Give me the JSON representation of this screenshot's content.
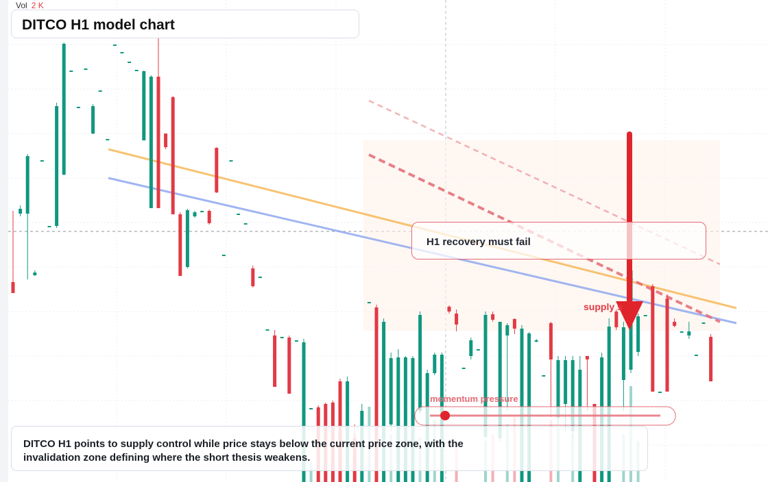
{
  "volume": {
    "label": "Vol",
    "value": "2 K"
  },
  "title": "DITCO H1 model chart",
  "callout": "H1 recovery must fail",
  "supply_label": "supply s",
  "meter": {
    "label": "momentum pressure",
    "level": 0.03
  },
  "caption": "DITCO H1 points to supply control while price stays below the current price zone, with the invalidation zone defining where the short thesis weakens.",
  "colors": {
    "up": "#10977f",
    "down": "#e23a45",
    "ma_fast": "#f6b85a",
    "ma_slow": "#8fa8ee",
    "channel": "#e46a74",
    "arrow": "#e0242c"
  },
  "chart_data": {
    "type": "candlestick",
    "y_range": [
      0,
      704
    ],
    "ohlc": [
      [
        412,
        428,
        308,
        428
      ],
      [
        312,
        305,
        300,
        316
      ],
      [
        312,
        228,
        225,
        408
      ],
      [
        402,
        398,
        395,
        403
      ],
      [
        234,
        234,
        234,
        234
      ],
      [
        330,
        330,
        330,
        330
      ],
      [
        330,
        155,
        150,
        333
      ],
      [
        255,
        64,
        62,
        256
      ],
      [
        103,
        103,
        103,
        103
      ],
      [
        156,
        156,
        156,
        156
      ],
      [
        100,
        100,
        100,
        100
      ],
      [
        195,
        155,
        152,
        196
      ],
      [
        132,
        132,
        132,
        132
      ],
      [
        203,
        203,
        203,
        203
      ],
      [
        65,
        65,
        65,
        65
      ],
      [
        76,
        76,
        76,
        76
      ],
      [
        90,
        90,
        90,
        90
      ],
      [
        102,
        102,
        102,
        102
      ],
      [
        205,
        104,
        103,
        205
      ],
      [
        304,
        112,
        110,
        304
      ],
      [
        112,
        304,
        20,
        304
      ],
      [
        195,
        215,
        195,
        218
      ],
      [
        142,
        313,
        140,
        313
      ],
      [
        313,
        403,
        310,
        403
      ],
      [
        390,
        307,
        305,
        392
      ],
      [
        316,
        310,
        308,
        318
      ],
      [
        308,
        308,
        308,
        308
      ],
      [
        308,
        326,
        306,
        328
      ],
      [
        216,
        281,
        215,
        282
      ],
      [
        372,
        372,
        372,
        372
      ],
      [
        234,
        234,
        234,
        234
      ],
      [
        312,
        312,
        312,
        312
      ],
      [
        326,
        326,
        326,
        326
      ],
      [
        392,
        418,
        388,
        420
      ],
      [
        404,
        404,
        404,
        404
      ],
      [
        481,
        481,
        481,
        481
      ],
      [
        490,
        565,
        482,
        565
      ],
      [
        492,
        492,
        492,
        492
      ],
      [
        493,
        575,
        490,
        575
      ],
      [
        497,
        497,
        497,
        497
      ],
      [
        704,
        500,
        495,
        704
      ],
      [
        596,
        596,
        596,
        596
      ],
      [
        595,
        704,
        592,
        704
      ],
      [
        590,
        704,
        588,
        704
      ],
      [
        588,
        704,
        585,
        704
      ],
      [
        557,
        704,
        553,
        704
      ],
      [
        704,
        557,
        550,
        704
      ],
      [
        640,
        704,
        620,
        704
      ],
      [
        704,
        600,
        590,
        704
      ],
      [
        441,
        441,
        441,
        441
      ],
      [
        449,
        704,
        445,
        704
      ],
      [
        704,
        470,
        465,
        704
      ],
      [
        620,
        523,
        515,
        630
      ],
      [
        704,
        522,
        510,
        704
      ],
      [
        704,
        522,
        520,
        704
      ],
      [
        704,
        523,
        520,
        704
      ],
      [
        600,
        460,
        455,
        604
      ],
      [
        704,
        545,
        540,
        704
      ],
      [
        545,
        518,
        515,
        548
      ],
      [
        704,
        518,
        515,
        704
      ],
      [
        448,
        455,
        446,
        458
      ],
      [
        458,
        474,
        452,
        484
      ],
      [
        537,
        537,
        537,
        537
      ],
      [
        520,
        497,
        493,
        525
      ],
      [
        510,
        510,
        510,
        510
      ],
      [
        638,
        460,
        455,
        640
      ],
      [
        459,
        467,
        455,
        470
      ],
      [
        640,
        470,
        470,
        645
      ],
      [
        490,
        475,
        472,
        600
      ],
      [
        466,
        480,
        465,
        488
      ],
      [
        704,
        480,
        475,
        704
      ],
      [
        704,
        487,
        485,
        704
      ],
      [
        498,
        497,
        495,
        500
      ],
      [
        548,
        548,
        548,
        548
      ],
      [
        472,
        525,
        470,
        610
      ],
      [
        610,
        526,
        520,
        620
      ],
      [
        590,
        526,
        520,
        630
      ],
      [
        630,
        526,
        520,
        640
      ],
      [
        704,
        540,
        520,
        704
      ],
      [
        520,
        525,
        525,
        600
      ],
      [
        590,
        704,
        590,
        704
      ],
      [
        704,
        522,
        515,
        704
      ],
      [
        704,
        477,
        465,
        704
      ],
      [
        455,
        478,
        452,
        482
      ],
      [
        555,
        478,
        470,
        600
      ],
      [
        540,
        395,
        385,
        545
      ],
      [
        514,
        462,
        458,
        520
      ],
      [
        460,
        460,
        460,
        460
      ],
      [
        418,
        572,
        415,
        572
      ],
      [
        572,
        572,
        572,
        572
      ],
      [
        436,
        572,
        430,
        572
      ],
      [
        470,
        476,
        465,
        478
      ],
      [
        484,
        484,
        484,
        484
      ],
      [
        490,
        484,
        470,
        495
      ],
      [
        518,
        518,
        518,
        518
      ],
      [
        471,
        471,
        471,
        471
      ],
      [
        492,
        557,
        488,
        557
      ]
    ],
    "moving_average_fast": [
      [
        158,
        218
      ],
      [
        1074,
        450
      ]
    ],
    "moving_average_slow": [
      [
        158,
        260
      ],
      [
        1074,
        472
      ]
    ],
    "channel_upper": [
      [
        538,
        147
      ],
      [
        1050,
        386
      ]
    ],
    "channel_lower": [
      [
        538,
        226
      ],
      [
        1050,
        470
      ]
    ],
    "current_price_line": 338,
    "target_arrow": {
      "from": 196,
      "to": 482
    }
  }
}
